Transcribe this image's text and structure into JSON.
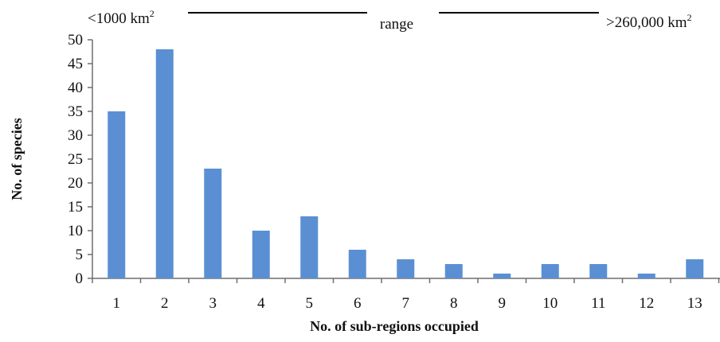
{
  "chart_data": {
    "type": "bar",
    "title": "",
    "xlabel": "No. of sub-regions occupied",
    "ylabel": "No. of species",
    "ylim": [
      0,
      50
    ],
    "yticks": [
      0,
      5,
      10,
      15,
      20,
      25,
      30,
      35,
      40,
      45,
      50
    ],
    "categories": [
      "1",
      "2",
      "3",
      "4",
      "5",
      "6",
      "7",
      "8",
      "9",
      "10",
      "11",
      "12",
      "13"
    ],
    "values": [
      35,
      48,
      23,
      10,
      13,
      6,
      4,
      3,
      1,
      3,
      3,
      1,
      4
    ],
    "grid": false,
    "legend": "none",
    "bar_color": "#5b8fd3",
    "annotations": {
      "range_left": "<1000 km",
      "range_left_sup": "2",
      "range_center": "range",
      "range_right": ">260,000 km",
      "range_right_sup": "2"
    }
  }
}
